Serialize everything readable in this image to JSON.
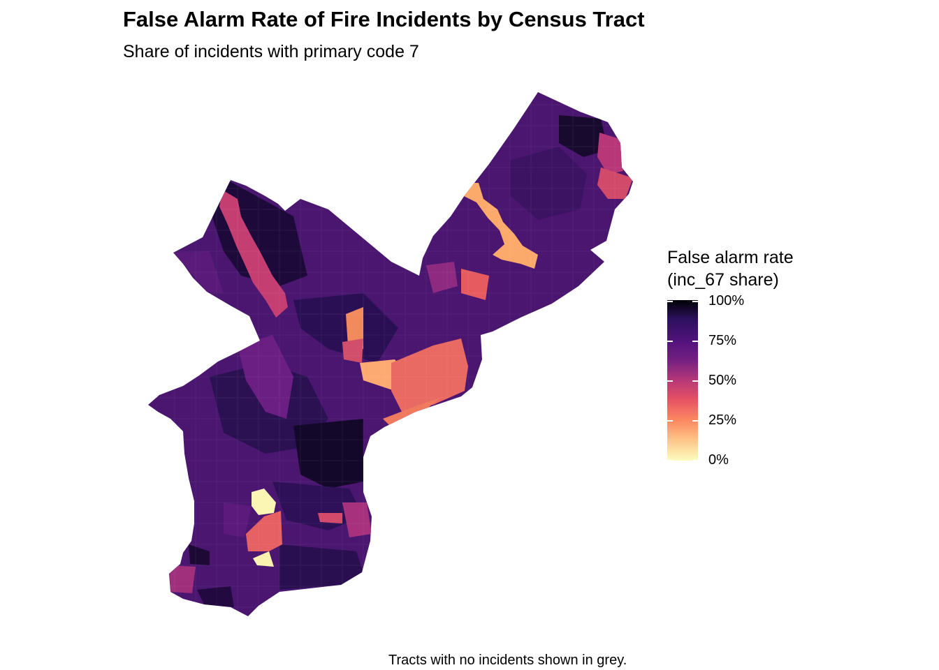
{
  "title": "False Alarm Rate of Fire Incidents by Census Tract",
  "subtitle": "Share of incidents with primary code 7",
  "caption": "Tracts with no incidents shown in grey.",
  "legend": {
    "title_line1": "False alarm rate",
    "title_line2": "(inc_67 share)",
    "labels": [
      "100%",
      "75%",
      "50%",
      "25%",
      "0%"
    ]
  },
  "colors": {
    "scale": [
      "#000004",
      "#2c115f",
      "#51127c",
      "#721f81",
      "#b73779",
      "#e75263",
      "#fc8961",
      "#fec488",
      "#fcfdbf"
    ],
    "base_tract": "#4a1670"
  }
}
